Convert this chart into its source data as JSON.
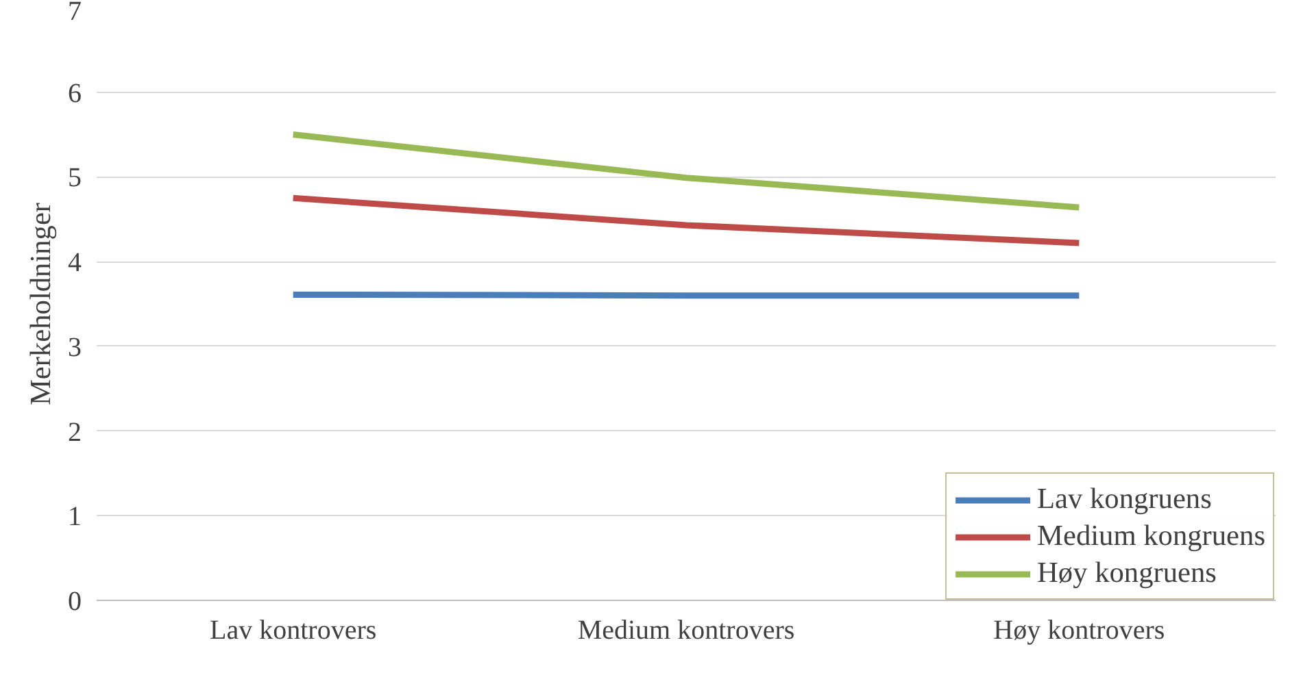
{
  "chart_data": {
    "type": "line",
    "ylabel": "Merkeholdninger",
    "categories": [
      "Lav kontrovers",
      "Medium kontrovers",
      "Høy kontrovers"
    ],
    "series": [
      {
        "name": "Lav kongruens",
        "color": "#4a7ebb",
        "values": [
          3.61,
          3.6,
          3.6
        ]
      },
      {
        "name": "Medium kongruens",
        "color": "#be4b48",
        "values": [
          4.75,
          4.43,
          4.22
        ]
      },
      {
        "name": "Høy kongruens",
        "color": "#98b954",
        "values": [
          5.5,
          4.99,
          4.64
        ]
      }
    ],
    "ylim": [
      0,
      7
    ],
    "yticks": [
      0,
      1,
      2,
      3,
      4,
      5,
      6,
      7
    ],
    "grid": "y",
    "legend": "bottom right",
    "marker": "none",
    "line_style": "solid"
  }
}
